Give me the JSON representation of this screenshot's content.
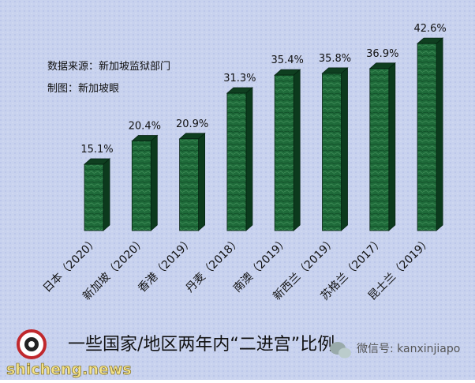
{
  "chart_data": {
    "type": "bar3d",
    "title": "一些国家/地区两年内“二进宫”比例",
    "source": "数据来源：新加坡监狱部门",
    "credit": "制图：新加坡眼",
    "watermark": "shicheng.news",
    "wechat": "微信号: kanxinjiapo",
    "categories": [
      "日本（2020）",
      "新加坡（2020）",
      "香港（2019）",
      "丹麦（2018）",
      "南澳（2019）",
      "新西兰（2019）",
      "苏格兰（2017）",
      "昆士兰（2019）"
    ],
    "values": [
      15.1,
      20.4,
      20.9,
      31.3,
      35.4,
      35.8,
      36.9,
      42.6
    ],
    "value_labels": [
      "15.1%",
      "20.4%",
      "20.9%",
      "31.3%",
      "35.4%",
      "35.8%",
      "36.9%",
      "42.6%"
    ],
    "color": "#1f6b3a"
  }
}
